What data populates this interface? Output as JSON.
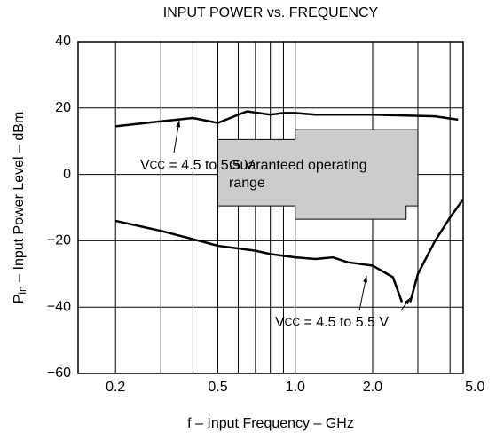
{
  "chart_data": {
    "type": "line",
    "title": "INPUT POWER vs. FREQUENCY",
    "x_label": "f – Input Frequency – GHz",
    "y_label": {
      "main": "P",
      "sub": "in",
      "rest": " – Input Power Level – dBm"
    },
    "log_x": true,
    "grid": true,
    "xlim": [
      0.143,
      4.5
    ],
    "ylim": [
      -60,
      40
    ],
    "xticks": [
      0.2,
      0.5,
      {
        "value": 1,
        "label": "1.0"
      },
      {
        "value": 2,
        "label": "2.0"
      },
      {
        "value": 5,
        "label": "5.0"
      }
    ],
    "xminor": [
      0.3,
      0.4,
      0.6,
      0.7,
      0.8,
      0.9,
      3,
      4
    ],
    "yticks": [
      {
        "value": -60,
        "label": "−60"
      },
      {
        "value": -40,
        "label": "−40"
      },
      {
        "value": -20,
        "label": "−20"
      },
      0,
      20,
      40
    ],
    "series": [
      {
        "color": "#000000",
        "x": [
          0.2,
          0.3,
          0.4,
          0.5,
          0.6,
          0.65,
          0.8,
          0.9,
          1.0,
          1.2,
          2.0,
          3.5,
          4.3
        ],
        "values": [
          14.5,
          16,
          17,
          15.5,
          18,
          19,
          18,
          18.5,
          18.5,
          18,
          18,
          17.5,
          16.5
        ]
      },
      {
        "color": "#000000",
        "x": [
          0.2,
          0.3,
          0.4,
          0.5,
          0.7,
          0.8,
          1.0,
          1.2,
          1.4,
          1.6,
          2.0,
          2.4,
          2.6,
          null,
          2.8,
          3.0,
          3.5,
          4.0,
          4.5
        ],
        "values": [
          -14,
          -17,
          -19.5,
          -21.5,
          -23,
          -24,
          -25,
          -25.5,
          -25,
          -26.5,
          -27.5,
          -31,
          -38.5,
          null,
          -38.5,
          -30,
          -20,
          -13,
          -7.5
        ]
      }
    ],
    "region": {
      "label": [
        "Guaranteed operating",
        "range"
      ],
      "color": "#cccccc",
      "x": [
        0.5,
        1.0,
        1.0,
        3.0,
        3.0,
        2.7,
        2.7,
        1.0,
        1.0,
        0.5
      ],
      "y": [
        10.5,
        10.5,
        13.5,
        13.5,
        -9.5,
        -9.5,
        -13.5,
        -13.5,
        -9.5,
        -9.5
      ]
    },
    "annotations": [
      {
        "main": "V",
        "sub": "CC",
        "rest": " = 4.5 to 5.5 V"
      },
      {
        "main": "V",
        "sub": "CC",
        "rest": " = 4.5 to 5.5 V"
      }
    ]
  }
}
